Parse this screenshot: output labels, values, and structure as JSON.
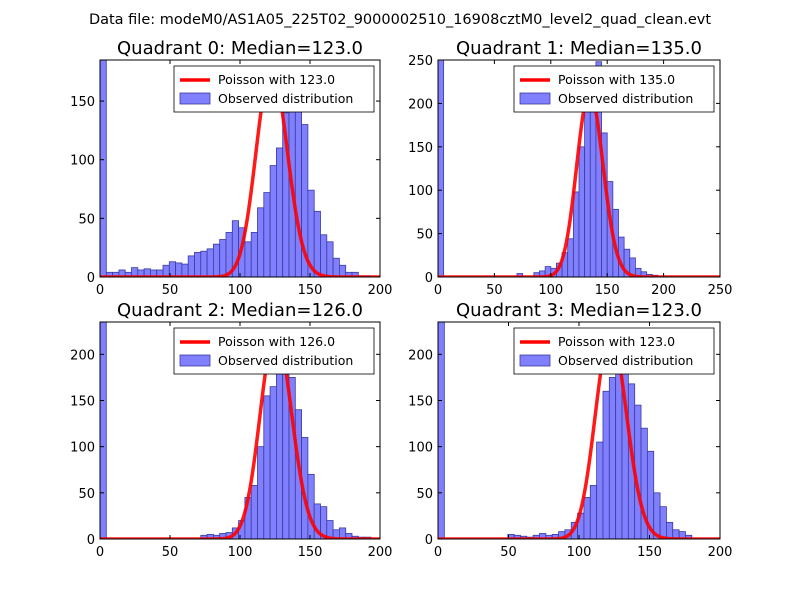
{
  "figure": {
    "suptitle": "Data file: modeM0/AS1A05_225T02_9000002510_16908cztM0_level2_quad_clean.evt"
  },
  "colors": {
    "histogram_fill": "#8080ff",
    "histogram_edge": "#3a3aa0",
    "poisson_line": "#ff0000"
  },
  "chart_data": [
    {
      "type": "bar",
      "title": "Quadrant 0: Median=123.0",
      "xlim": [
        0,
        200
      ],
      "ylim": [
        0,
        185
      ],
      "xticks": [
        "0",
        "50",
        "100",
        "150",
        "200"
      ],
      "yticks": [
        "0",
        "50",
        "100",
        "150"
      ],
      "ytick_values": [
        0,
        50,
        100,
        150
      ],
      "xtick_values": [
        0,
        50,
        100,
        150,
        200
      ],
      "bin_width": 4.5,
      "hist_bins": [
        [
          0,
          185
        ],
        [
          4.5,
          4
        ],
        [
          9,
          4
        ],
        [
          13.5,
          6
        ],
        [
          18,
          4
        ],
        [
          22.5,
          8
        ],
        [
          27,
          6
        ],
        [
          31.5,
          7
        ],
        [
          36,
          6
        ],
        [
          40.5,
          6
        ],
        [
          45,
          10
        ],
        [
          49.5,
          13
        ],
        [
          54,
          12
        ],
        [
          58.5,
          11
        ],
        [
          63,
          18
        ],
        [
          67.5,
          21
        ],
        [
          72,
          22
        ],
        [
          76.5,
          24
        ],
        [
          81,
          28
        ],
        [
          85.5,
          32
        ],
        [
          90,
          38
        ],
        [
          94.5,
          48
        ],
        [
          99,
          42
        ],
        [
          103.5,
          30
        ],
        [
          108,
          38
        ],
        [
          112.5,
          59
        ],
        [
          117,
          72
        ],
        [
          121.5,
          95
        ],
        [
          126,
          110
        ],
        [
          130.5,
          140
        ],
        [
          135,
          175
        ],
        [
          139.5,
          150
        ],
        [
          144,
          130
        ],
        [
          148.5,
          74
        ],
        [
          153,
          56
        ],
        [
          157.5,
          36
        ],
        [
          162,
          30
        ],
        [
          166.5,
          16
        ],
        [
          171,
          10
        ],
        [
          175.5,
          4
        ],
        [
          180,
          4
        ],
        [
          184.5,
          1
        ],
        [
          189,
          1
        ]
      ],
      "poisson_mean": 123.0,
      "poisson_peak": 178,
      "legend": [
        "Poisson with 123.0",
        "Observed distribution"
      ]
    },
    {
      "type": "bar",
      "title": "Quadrant 1: Median=135.0",
      "xlim": [
        0,
        250
      ],
      "ylim": [
        0,
        250
      ],
      "xticks": [
        "0",
        "50",
        "100",
        "150",
        "200",
        "250"
      ],
      "yticks": [
        "0",
        "50",
        "100",
        "150",
        "200",
        "250"
      ],
      "ytick_values": [
        0,
        50,
        100,
        150,
        200,
        250
      ],
      "xtick_values": [
        0,
        50,
        100,
        150,
        200,
        250
      ],
      "bin_width": 5,
      "hist_bins": [
        [
          0,
          250
        ],
        [
          70,
          4
        ],
        [
          85,
          5
        ],
        [
          90,
          7
        ],
        [
          95,
          12
        ],
        [
          100,
          10
        ],
        [
          105,
          16
        ],
        [
          110,
          28
        ],
        [
          115,
          44
        ],
        [
          120,
          98
        ],
        [
          125,
          150
        ],
        [
          130,
          192
        ],
        [
          135,
          230
        ],
        [
          140,
          248
        ],
        [
          145,
          166
        ],
        [
          150,
          110
        ],
        [
          155,
          78
        ],
        [
          160,
          46
        ],
        [
          165,
          32
        ],
        [
          170,
          22
        ],
        [
          175,
          10
        ],
        [
          180,
          6
        ],
        [
          185,
          3
        ],
        [
          190,
          2
        ]
      ],
      "poisson_mean": 135.0,
      "poisson_peak": 213,
      "legend": [
        "Poisson with 135.0",
        "Observed distribution"
      ]
    },
    {
      "type": "bar",
      "title": "Quadrant 2: Median=126.0",
      "xlim": [
        0,
        200
      ],
      "ylim": [
        0,
        235
      ],
      "xticks": [
        "0",
        "50",
        "100",
        "150",
        "200"
      ],
      "yticks": [
        "0",
        "50",
        "100",
        "150",
        "200"
      ],
      "ytick_values": [
        0,
        50,
        100,
        150,
        200
      ],
      "xtick_values": [
        0,
        50,
        100,
        150,
        200
      ],
      "bin_width": 4.5,
      "hist_bins": [
        [
          0,
          235
        ],
        [
          72,
          4
        ],
        [
          76.5,
          5
        ],
        [
          81,
          4
        ],
        [
          85.5,
          6
        ],
        [
          90,
          7
        ],
        [
          94.5,
          12
        ],
        [
          99,
          20
        ],
        [
          103.5,
          45
        ],
        [
          108,
          58
        ],
        [
          112.5,
          100
        ],
        [
          117,
          155
        ],
        [
          121.5,
          165
        ],
        [
          126,
          218
        ],
        [
          130.5,
          220
        ],
        [
          135,
          175
        ],
        [
          139.5,
          140
        ],
        [
          144,
          110
        ],
        [
          148.5,
          70
        ],
        [
          153,
          38
        ],
        [
          157.5,
          35
        ],
        [
          162,
          20
        ],
        [
          166.5,
          10
        ],
        [
          171,
          12
        ],
        [
          175.5,
          6
        ],
        [
          180,
          3
        ],
        [
          184.5,
          2
        ],
        [
          189,
          2
        ]
      ],
      "poisson_mean": 126.0,
      "poisson_peak": 224,
      "legend": [
        "Poisson with 126.0",
        "Observed distribution"
      ]
    },
    {
      "type": "bar",
      "title": "Quadrant 3: Median=123.0",
      "xlim": [
        0,
        200
      ],
      "ylim": [
        0,
        235
      ],
      "xticks": [
        "0",
        "50",
        "100",
        "150",
        "200"
      ],
      "yticks": [
        "0",
        "50",
        "100",
        "150",
        "200"
      ],
      "ytick_values": [
        0,
        50,
        100,
        150,
        200
      ],
      "xtick_values": [
        0,
        50,
        100,
        150,
        200
      ],
      "bin_width": 4.5,
      "hist_bins": [
        [
          0,
          235
        ],
        [
          49.5,
          5
        ],
        [
          54,
          4
        ],
        [
          58.5,
          3
        ],
        [
          63,
          2
        ],
        [
          67.5,
          4
        ],
        [
          72,
          6
        ],
        [
          76.5,
          4
        ],
        [
          81,
          5
        ],
        [
          85.5,
          8
        ],
        [
          90,
          10
        ],
        [
          94.5,
          18
        ],
        [
          99,
          28
        ],
        [
          103.5,
          45
        ],
        [
          108,
          58
        ],
        [
          112.5,
          105
        ],
        [
          117,
          160
        ],
        [
          121.5,
          175
        ],
        [
          126,
          222
        ],
        [
          130.5,
          218
        ],
        [
          135,
          168
        ],
        [
          139.5,
          145
        ],
        [
          144,
          120
        ],
        [
          148.5,
          95
        ],
        [
          153,
          50
        ],
        [
          157.5,
          35
        ],
        [
          162,
          18
        ],
        [
          166.5,
          10
        ],
        [
          171,
          8
        ],
        [
          175.5,
          4
        ]
      ],
      "poisson_mean": 123.0,
      "poisson_peak": 222,
      "legend": [
        "Poisson with 123.0",
        "Observed distribution"
      ]
    }
  ]
}
